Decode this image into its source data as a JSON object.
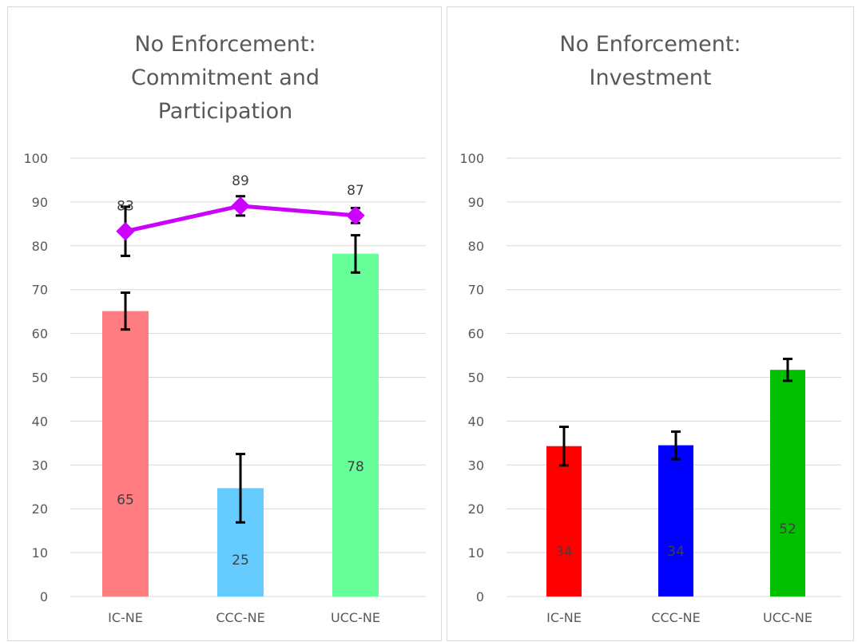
{
  "chart_data": [
    {
      "type": "bar",
      "title": "No Enforcement: Commitment and Participation",
      "title_lines": [
        "No Enforcement:",
        "Commitment and",
        "Participation"
      ],
      "categories": [
        "IC-NE",
        "CCC-NE",
        "UCC-NE"
      ],
      "ylim": [
        0,
        100
      ],
      "yticks": [
        0,
        10,
        20,
        30,
        40,
        50,
        60,
        70,
        80,
        90,
        100
      ],
      "grid": true,
      "series": [
        {
          "type": "bar",
          "values": [
            65.1,
            24.7,
            78.2
          ],
          "labels": [
            "65",
            "25",
            "78"
          ],
          "error_low": [
            60.9,
            16.9,
            73.9
          ],
          "error_high": [
            69.3,
            32.5,
            82.4
          ],
          "colors": [
            "#ff7c80",
            "#66ccff",
            "#66ff99"
          ]
        },
        {
          "type": "line",
          "values": [
            83.3,
            89.1,
            86.9
          ],
          "labels": [
            "83",
            "89",
            "87"
          ],
          "error_low": [
            77.7,
            86.9,
            85.2
          ],
          "error_high": [
            88.9,
            91.3,
            88.6
          ],
          "color": "#cc00ff"
        }
      ]
    },
    {
      "type": "bar",
      "title": "No Enforcement: Investment",
      "title_lines": [
        "No Enforcement:",
        "Investment"
      ],
      "categories": [
        "IC-NE",
        "CCC-NE",
        "UCC-NE"
      ],
      "ylim": [
        0,
        100
      ],
      "yticks": [
        0,
        10,
        20,
        30,
        40,
        50,
        60,
        70,
        80,
        90,
        100
      ],
      "grid": true,
      "series": [
        {
          "type": "bar",
          "values": [
            34.3,
            34.5,
            51.7
          ],
          "labels": [
            "34",
            "34",
            "52"
          ],
          "error_low": [
            29.9,
            31.3,
            49.2
          ],
          "error_high": [
            38.7,
            37.6,
            54.2
          ],
          "colors": [
            "#ff0000",
            "#0000ff",
            "#00c000"
          ]
        }
      ]
    }
  ]
}
